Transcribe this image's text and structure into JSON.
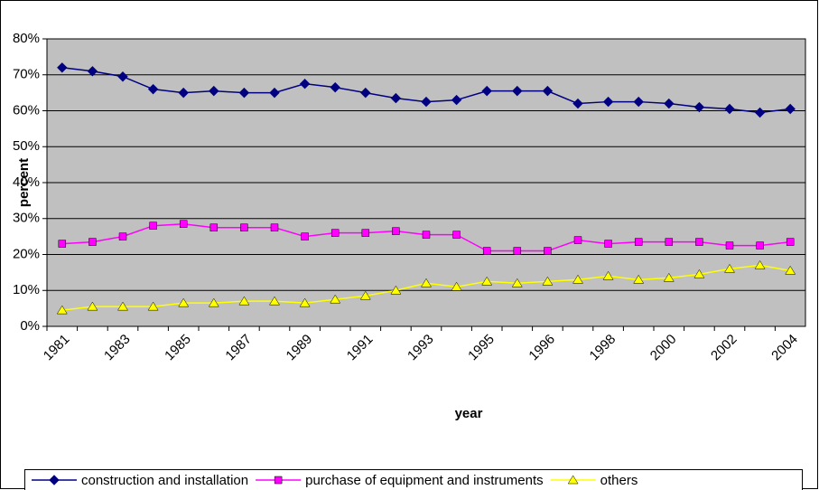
{
  "chart_data": {
    "type": "line",
    "x_label": "year",
    "y_label": "percent",
    "categories": [
      "1981",
      null,
      "1983",
      null,
      "1985",
      null,
      "1987",
      null,
      "1989",
      null,
      "1991",
      null,
      "1993",
      null,
      "1995",
      null,
      "1996",
      null,
      "1998",
      null,
      "2000",
      null,
      "2002",
      null,
      "2004"
    ],
    "series": [
      {
        "name": "construction and installation",
        "color": "#000080",
        "marker": "diamond",
        "values": [
          72,
          71,
          69.5,
          66,
          65,
          65.5,
          65,
          65,
          67.5,
          66.5,
          65,
          63.5,
          62.5,
          63,
          65.5,
          65.5,
          65.5,
          62,
          62.5,
          62.5,
          62,
          61,
          60.5,
          59.5,
          60.5
        ]
      },
      {
        "name": "purchase of equipment and instruments",
        "color": "#ff00ff",
        "marker": "square",
        "values": [
          23,
          23.5,
          25,
          28,
          28.5,
          27.5,
          27.5,
          27.5,
          25,
          26,
          26,
          26.5,
          25.5,
          25.5,
          21,
          21,
          21,
          24,
          23,
          23.5,
          23.5,
          23.5,
          22.5,
          22.5,
          23.5
        ]
      },
      {
        "name": "others",
        "color": "#ffff00",
        "marker": "triangle",
        "values": [
          4.5,
          5.5,
          5.5,
          5.5,
          6.5,
          6.5,
          7,
          7,
          6.5,
          7.5,
          8.5,
          10,
          12,
          11,
          12.5,
          12,
          12.5,
          13,
          14,
          13,
          13.5,
          14.5,
          16,
          17,
          15.5
        ]
      }
    ],
    "ylim": [
      0,
      80
    ],
    "yticks": [
      {
        "value": 0,
        "label": "0%"
      },
      {
        "value": 10,
        "label": "10%"
      },
      {
        "value": 20,
        "label": "20%"
      },
      {
        "value": 30,
        "label": "30%"
      },
      {
        "value": 40,
        "label": "40%"
      },
      {
        "value": 50,
        "label": "50%"
      },
      {
        "value": 60,
        "label": "60%"
      },
      {
        "value": 70,
        "label": "70%"
      },
      {
        "value": 80,
        "label": "80%"
      }
    ],
    "grid": true,
    "plot_background": "#c0c0c0",
    "legend": "bottom"
  }
}
